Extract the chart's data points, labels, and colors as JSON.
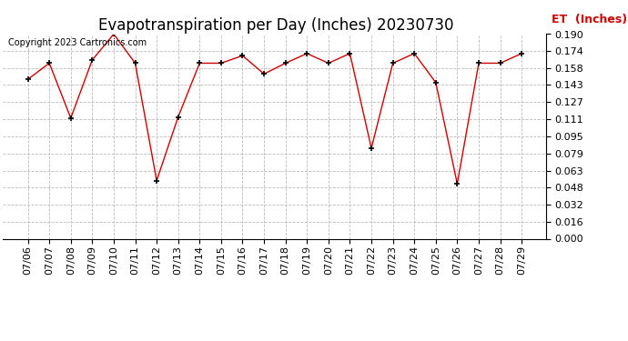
{
  "title": "Evapotranspiration per Day (Inches) 20230730",
  "copyright": "Copyright 2023 Cartronics.com",
  "legend_label": "ET  (Inches)",
  "dates": [
    "07/06",
    "07/07",
    "07/08",
    "07/09",
    "07/10",
    "07/11",
    "07/12",
    "07/13",
    "07/14",
    "07/15",
    "07/16",
    "07/17",
    "07/18",
    "07/19",
    "07/20",
    "07/21",
    "07/22",
    "07/23",
    "07/24",
    "07/25",
    "07/26",
    "07/27",
    "07/28",
    "07/29"
  ],
  "values": [
    0.148,
    0.163,
    0.112,
    0.166,
    0.19,
    0.163,
    0.054,
    0.113,
    0.163,
    0.163,
    0.17,
    0.153,
    0.163,
    0.172,
    0.163,
    0.172,
    0.084,
    0.163,
    0.172,
    0.145,
    0.051,
    0.163,
    0.163,
    0.172
  ],
  "line_color": "#cc0000",
  "marker_color": "#000000",
  "grid_color": "#bbbbbb",
  "bg_color": "#ffffff",
  "ylim": [
    0.0,
    0.19
  ],
  "yticks": [
    0.0,
    0.016,
    0.032,
    0.048,
    0.063,
    0.079,
    0.095,
    0.111,
    0.127,
    0.143,
    0.158,
    0.174,
    0.19
  ],
  "title_fontsize": 12,
  "copyright_fontsize": 7,
  "legend_fontsize": 9,
  "tick_fontsize": 8,
  "fig_width": 6.9,
  "fig_height": 3.75,
  "dpi": 100
}
